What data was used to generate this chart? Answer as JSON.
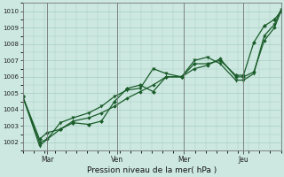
{
  "xlabel": "Pression niveau de la mer( hPa )",
  "bg_color": "#cce8e0",
  "grid_color": "#a8cfc4",
  "line_color": "#1a5c2a",
  "ylim": [
    1001.5,
    1010.5
  ],
  "yticks": [
    1002,
    1003,
    1004,
    1005,
    1006,
    1007,
    1008,
    1009,
    1010
  ],
  "xtick_labels": [
    "Mar",
    "Ven",
    "Mer",
    "Jeu"
  ],
  "xtick_positions": [
    0.095,
    0.365,
    0.625,
    0.855
  ],
  "xlim": [
    0.0,
    1.0
  ],
  "series1_x": [
    0.0,
    0.065,
    0.095,
    0.145,
    0.195,
    0.255,
    0.305,
    0.355,
    0.405,
    0.455,
    0.505,
    0.555,
    0.615,
    0.665,
    0.715,
    0.765,
    0.825,
    0.855,
    0.895,
    0.935,
    0.975,
    1.0
  ],
  "series1_y": [
    1004.8,
    1002.2,
    1002.6,
    1002.8,
    1003.2,
    1003.1,
    1003.3,
    1004.5,
    1005.3,
    1005.5,
    1005.1,
    1006.0,
    1006.0,
    1006.8,
    1006.8,
    1007.0,
    1006.1,
    1006.1,
    1008.1,
    1009.1,
    1009.5,
    1010.0
  ],
  "series2_x": [
    0.0,
    0.065,
    0.095,
    0.145,
    0.195,
    0.255,
    0.305,
    0.355,
    0.405,
    0.455,
    0.505,
    0.555,
    0.615,
    0.665,
    0.715,
    0.765,
    0.825,
    0.855,
    0.895,
    0.935,
    0.975,
    1.0
  ],
  "series2_y": [
    1004.8,
    1001.8,
    1002.2,
    1003.2,
    1003.5,
    1003.8,
    1004.2,
    1004.8,
    1005.2,
    1005.3,
    1006.5,
    1006.2,
    1006.0,
    1007.0,
    1007.2,
    1006.8,
    1005.8,
    1005.8,
    1006.2,
    1008.5,
    1009.2,
    1010.1
  ],
  "series3_x": [
    0.0,
    0.065,
    0.095,
    0.145,
    0.195,
    0.255,
    0.305,
    0.355,
    0.405,
    0.455,
    0.505,
    0.555,
    0.615,
    0.665,
    0.715,
    0.765,
    0.825,
    0.855,
    0.895,
    0.935,
    0.975,
    1.0
  ],
  "series3_y": [
    1004.8,
    1002.0,
    1002.2,
    1002.8,
    1003.3,
    1003.5,
    1003.8,
    1004.2,
    1004.7,
    1005.1,
    1005.5,
    1006.0,
    1006.0,
    1006.5,
    1006.7,
    1007.1,
    1006.0,
    1006.0,
    1006.3,
    1008.2,
    1009.0,
    1010.0
  ]
}
